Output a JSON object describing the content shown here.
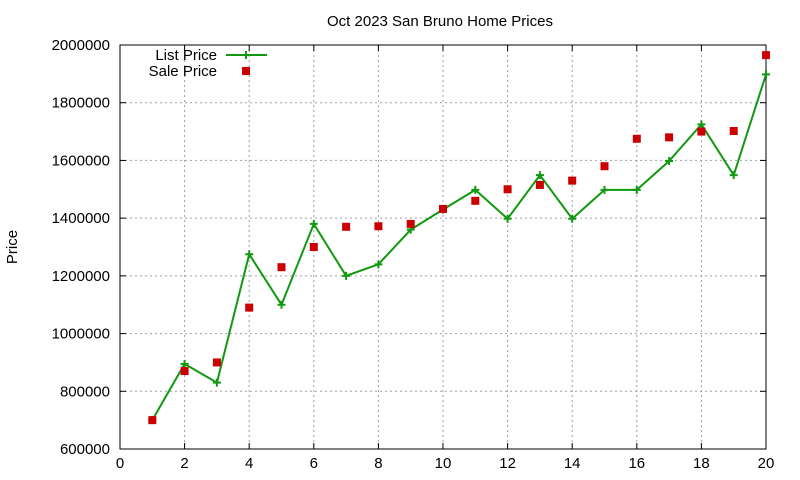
{
  "chart_data": {
    "type": "line",
    "title": "Oct 2023 San Bruno Home Prices",
    "xlabel": "",
    "ylabel": "Price",
    "xlim": [
      0,
      20
    ],
    "ylim": [
      600000,
      2000000
    ],
    "x_ticks": [
      "0",
      "2",
      "4",
      "6",
      "8",
      "10",
      "12",
      "14",
      "16",
      "18",
      "20"
    ],
    "y_ticks": [
      "600000",
      "800000",
      "1000000",
      "1200000",
      "1400000",
      "1600000",
      "1800000",
      "2000000"
    ],
    "grid": true,
    "legend_position": "top-left",
    "series": [
      {
        "name": "List Price",
        "style": "line+points",
        "color": "#119911",
        "x": [
          1,
          2,
          3,
          4,
          5,
          6,
          7,
          8,
          9,
          10,
          11,
          12,
          13,
          14,
          15,
          16,
          17,
          18,
          19,
          20
        ],
        "y": [
          700000,
          895000,
          830000,
          1275000,
          1100000,
          1380000,
          1200000,
          1240000,
          1360000,
          1430000,
          1498000,
          1398000,
          1549000,
          1398000,
          1498000,
          1498000,
          1598000,
          1725000,
          1549000,
          1898000
        ]
      },
      {
        "name": "Sale Price",
        "style": "points",
        "color": "#cc0000",
        "x": [
          1,
          2,
          3,
          4,
          5,
          6,
          7,
          8,
          9,
          10,
          11,
          12,
          13,
          14,
          15,
          16,
          17,
          18,
          19,
          20
        ],
        "y": [
          700000,
          870000,
          900000,
          1090000,
          1230000,
          1300000,
          1370000,
          1372000,
          1380000,
          1432000,
          1460000,
          1500000,
          1515000,
          1530000,
          1580000,
          1675000,
          1680000,
          1700000,
          1702000,
          1965000
        ]
      }
    ]
  }
}
